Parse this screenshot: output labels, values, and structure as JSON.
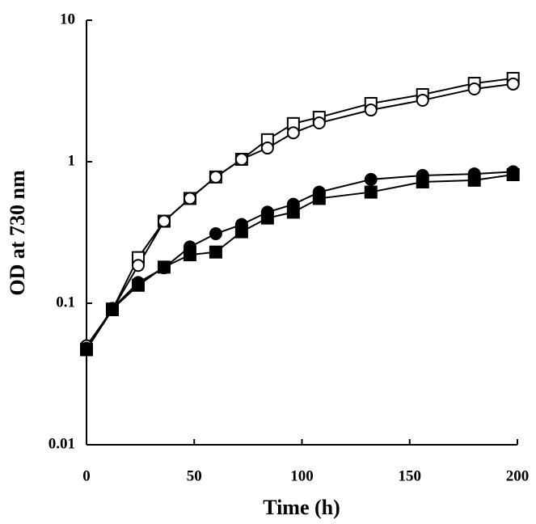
{
  "chart_data": {
    "type": "line",
    "x_label": "Time (h)",
    "y_label": "OD at 730 nm",
    "x": [
      0,
      12,
      24,
      36,
      48,
      60,
      72,
      84,
      96,
      108,
      132,
      156,
      180,
      198
    ],
    "xlim": [
      0,
      200
    ],
    "xticks": [
      0,
      50,
      100,
      150,
      200
    ],
    "ylim": [
      0.01,
      10
    ],
    "yticks": [
      0.01,
      0.1,
      1,
      10
    ],
    "log_y": true,
    "grid": false,
    "series": [
      {
        "color": "#000000",
        "marker": "square",
        "filled": false,
        "values": [
          0.047,
          0.09,
          0.21,
          0.38,
          0.55,
          0.78,
          1.04,
          1.43,
          1.86,
          2.06,
          2.58,
          2.98,
          3.58,
          3.88
        ]
      },
      {
        "color": "#000000",
        "marker": "circle",
        "filled": false,
        "values": [
          0.05,
          0.09,
          0.185,
          0.38,
          0.55,
          0.78,
          1.04,
          1.25,
          1.6,
          1.88,
          2.32,
          2.72,
          3.27,
          3.54
        ]
      },
      {
        "color": "#000000",
        "marker": "circle",
        "filled": true,
        "values": [
          0.048,
          0.092,
          0.14,
          0.178,
          0.25,
          0.31,
          0.36,
          0.44,
          0.5,
          0.61,
          0.75,
          0.8,
          0.82,
          0.85
        ]
      },
      {
        "color": "#000000",
        "marker": "square",
        "filled": true,
        "values": [
          0.047,
          0.091,
          0.134,
          0.18,
          0.22,
          0.23,
          0.32,
          0.4,
          0.44,
          0.55,
          0.61,
          0.72,
          0.74,
          0.81
        ]
      }
    ]
  }
}
